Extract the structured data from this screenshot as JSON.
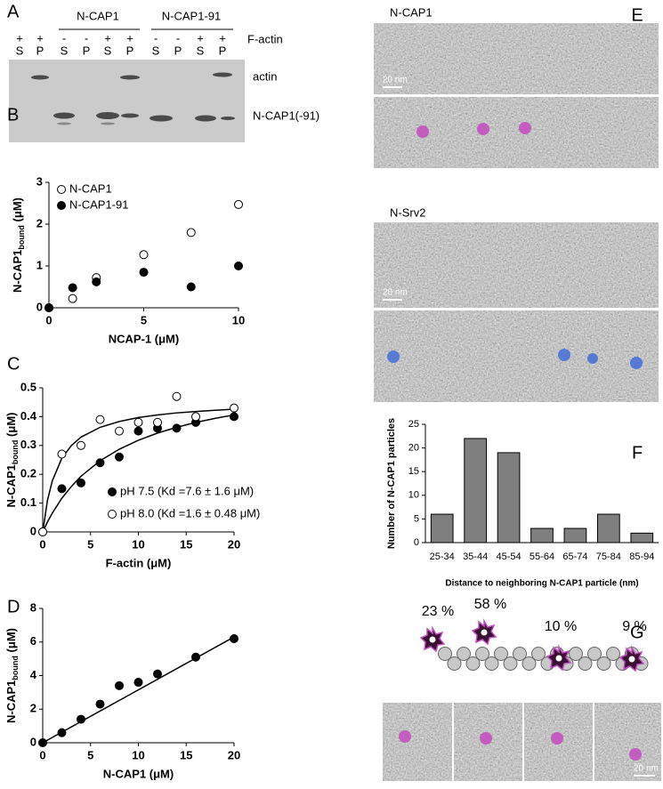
{
  "chart_data": [
    {
      "type": "scatter",
      "panel": "B",
      "x": [
        0,
        1.25,
        2.5,
        5,
        7.5,
        10
      ],
      "series": [
        {
          "name": "N-CAP1",
          "color": "#000000",
          "marker": "open",
          "values": [
            0,
            0.22,
            0.72,
            1.27,
            1.8,
            2.47
          ]
        },
        {
          "name": "N-CAP1-91",
          "color": "#000000",
          "marker": "filled",
          "values": [
            0,
            0.48,
            0.62,
            0.85,
            0.5,
            1.0
          ]
        }
      ],
      "xlabel": "NCAP-1 (μM)",
      "ylabel": [
        "N-CAP1",
        "bound",
        " (μM)"
      ],
      "xlim": [
        0,
        10
      ],
      "ylim": [
        0,
        3
      ],
      "xticks": [
        0,
        5,
        10
      ],
      "yticks": [
        0,
        1,
        2,
        3
      ],
      "legend": "upper left"
    },
    {
      "type": "scatter",
      "panel": "C",
      "x": [
        0,
        2,
        4,
        6,
        8,
        10,
        12,
        14,
        16,
        20
      ],
      "series": [
        {
          "name": "pH 7.5 (Kd =7.6 ± 1.6 μM)",
          "color": "#000000",
          "marker": "filled",
          "values": [
            0,
            0.15,
            0.17,
            0.24,
            0.26,
            0.35,
            0.36,
            0.36,
            0.38,
            0.4
          ],
          "fit": {
            "x": [
              0,
              0.5,
              1,
              2,
              3,
              4,
              6,
              8,
              10,
              12,
              14,
              16,
              18,
              20
            ],
            "values": [
              0,
              0.035,
              0.065,
              0.117,
              0.158,
              0.193,
              0.247,
              0.287,
              0.318,
              0.343,
              0.363,
              0.38,
              0.394,
              0.406
            ]
          }
        },
        {
          "name": "pH 8.0 (Kd =1.6 ± 0.48 μM)",
          "color": "#000000",
          "marker": "open",
          "values": [
            0,
            0.27,
            0.3,
            0.39,
            0.35,
            0.38,
            0.38,
            0.47,
            0.4,
            0.43
          ],
          "fit": {
            "x": [
              0,
              0.5,
              1,
              2,
              3,
              4,
              6,
              8,
              10,
              12,
              14,
              16,
              18,
              20
            ],
            "values": [
              0,
              0.11,
              0.177,
              0.256,
              0.3,
              0.329,
              0.363,
              0.383,
              0.397,
              0.406,
              0.413,
              0.418,
              0.422,
              0.426
            ]
          }
        }
      ],
      "xlabel": "F-actin (μM)",
      "ylabel": [
        "N-CAP1",
        "bound",
        " (μM)"
      ],
      "xlim": [
        0,
        20
      ],
      "ylim": [
        0,
        0.5
      ],
      "xticks": [
        0,
        5,
        10,
        15,
        20
      ],
      "yticks": [
        0,
        0.1,
        0.2,
        0.3,
        0.4,
        0.5
      ],
      "legend": "lower right"
    },
    {
      "type": "scatter",
      "panel": "D",
      "x": [
        0,
        2,
        4,
        6,
        8,
        10,
        12,
        16,
        20
      ],
      "series": [
        {
          "color": "#000000",
          "marker": "filled",
          "values": [
            0,
            0.6,
            1.4,
            2.3,
            3.4,
            3.6,
            4.1,
            5.1,
            6.2
          ],
          "fit": {
            "x": [
              0,
              20
            ],
            "values": [
              0,
              6.3
            ]
          }
        }
      ],
      "xlabel": "N-CAP1 (μM)",
      "ylabel": [
        "N-CAP1",
        "bound",
        " (μM)"
      ],
      "xlim": [
        0,
        20
      ],
      "ylim": [
        0,
        8
      ],
      "xticks": [
        0,
        5,
        10,
        15,
        20
      ],
      "yticks": [
        0,
        2,
        4,
        6,
        8
      ]
    },
    {
      "type": "bar",
      "panel": "F",
      "categories": [
        "25-34",
        "35-44",
        "45-54",
        "55-64",
        "65-74",
        "75-84",
        "85-94"
      ],
      "values": [
        6,
        22,
        19,
        3,
        3,
        6,
        2
      ],
      "color": "#7f7f7f",
      "xlabel": "Distance to neighboring N-CAP1 particle (nm)",
      "ylabel": "Number of N-CAP1 particles",
      "ylim": [
        0,
        25
      ],
      "yticks": [
        0,
        5,
        10,
        15,
        20,
        25
      ]
    }
  ],
  "gel": {
    "panel": "A",
    "groups": [
      "N-CAP1",
      "N-CAP1-91"
    ],
    "factin": [
      "+",
      "+",
      "-",
      "-",
      "+",
      "+",
      "-",
      "-",
      "+",
      "+"
    ],
    "factin_label": "F-actin",
    "lanes": [
      "S",
      "P",
      "S",
      "P",
      "S",
      "P",
      "S",
      "P",
      "S",
      "P"
    ],
    "bands": [
      "actin",
      "N-CAP1(-91)"
    ]
  },
  "em": {
    "panel": "E",
    "titles": [
      "N-CAP1",
      "N-Srv2"
    ],
    "scale": "20 nm"
  },
  "model": {
    "panel": "G",
    "percentages": [
      "23 %",
      "58 %",
      "10 %",
      "9 %"
    ],
    "scale": "20 nm"
  }
}
